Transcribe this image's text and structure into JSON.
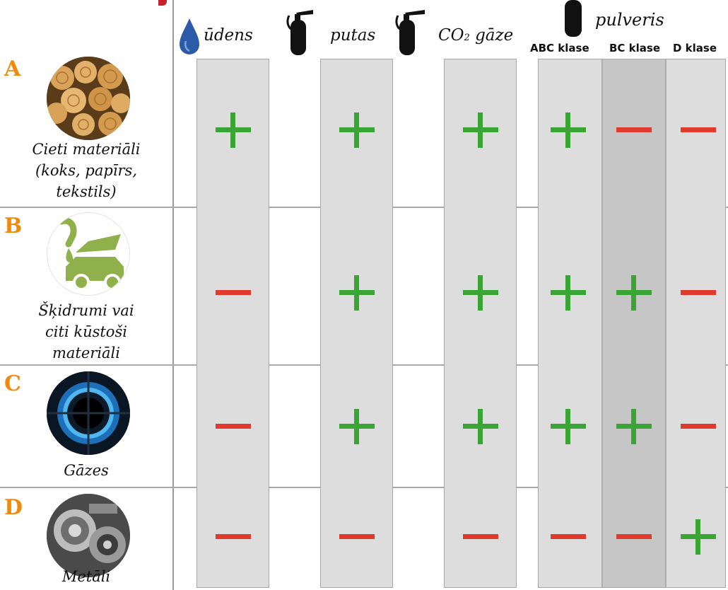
{
  "colors": {
    "plus": "#3aa535",
    "minus": "#e03a2e",
    "letter": "#f08a0a",
    "column": "#dcdddc",
    "highlight": "#c5c6c5",
    "water": "#2b5aa8"
  },
  "headers": {
    "water": "ūdens",
    "foam": "putas",
    "co2_prefix": "CO",
    "co2_sub": "2",
    "co2_suffix": "gāze",
    "powder": "pulveris",
    "abc": "ABC klase",
    "bc": "BC klase",
    "d": "D klase"
  },
  "rows": [
    {
      "letter": "A",
      "label_lines": [
        "Cieti materiāli",
        "(koks, papīrs,",
        "tekstils)"
      ],
      "icon": "firewood-logs-icon",
      "marks": [
        "plus",
        "plus",
        "plus",
        "plus",
        "minus",
        "minus"
      ]
    },
    {
      "letter": "B",
      "label_lines": [
        "Šķidrumi vai",
        "citi kūstoši",
        "materiāli"
      ],
      "icon": "car-fuel-icon",
      "marks": [
        "minus",
        "plus",
        "plus",
        "plus",
        "plus",
        "minus"
      ]
    },
    {
      "letter": "C",
      "label_lines": [
        "Gāzes"
      ],
      "icon": "gas-burner-flame-icon",
      "marks": [
        "minus",
        "plus",
        "plus",
        "plus",
        "plus",
        "minus"
      ]
    },
    {
      "letter": "D",
      "label_lines": [
        "Metāli"
      ],
      "icon": "metal-gears-icon",
      "marks": [
        "minus",
        "minus",
        "minus",
        "minus",
        "minus",
        "plus"
      ]
    }
  ]
}
